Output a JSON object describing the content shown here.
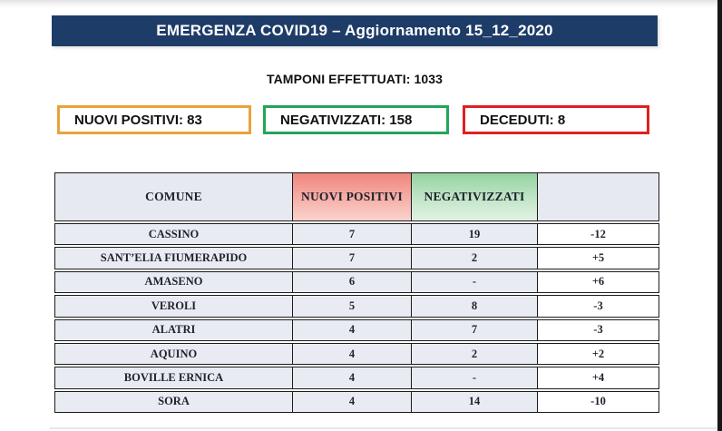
{
  "title_bar": {
    "text": "EMERGENZA COVID19 – Aggiornamento 15_12_2020",
    "bg_color": "#1e3c68",
    "text_color": "#ffffff"
  },
  "subtitle": "TAMPONI EFFETTUATI: 1033",
  "summary_boxes": [
    {
      "label": "NUOVI POSITIVI: 83",
      "border_color": "#e9a23b"
    },
    {
      "label": "NEGATIVIZZATI: 158",
      "border_color": "#23a55a"
    },
    {
      "label": "DECEDUTI: 8",
      "border_color": "#df2020"
    }
  ],
  "table": {
    "headers": [
      "COMUNE",
      "NUOVI POSITIVI",
      "NEGATIVIZZATI",
      ""
    ],
    "header_colors": {
      "comune_bg": "#e7e9f0",
      "nuovi_positivi_bg": "#f0857c",
      "negativizzati_bg": "#94d29f"
    },
    "row_bg": "#e9ebf2",
    "rows": [
      {
        "comune": "CASSINO",
        "nuovi_positivi": "7",
        "negativizzati": "19",
        "delta": "-12"
      },
      {
        "comune": "SANT’ELIA FIUMERAPIDO",
        "nuovi_positivi": "7",
        "negativizzati": "2",
        "delta": "+5"
      },
      {
        "comune": "AMASENO",
        "nuovi_positivi": "6",
        "negativizzati": "-",
        "delta": "+6"
      },
      {
        "comune": "VEROLI",
        "nuovi_positivi": "5",
        "negativizzati": "8",
        "delta": "-3"
      },
      {
        "comune": "ALATRI",
        "nuovi_positivi": "4",
        "negativizzati": "7",
        "delta": "-3"
      },
      {
        "comune": "AQUINO",
        "nuovi_positivi": "4",
        "negativizzati": "2",
        "delta": "+2"
      },
      {
        "comune": "BOVILLE ERNICA",
        "nuovi_positivis_note": "",
        "nuovi_positivi": "4",
        "negativizzati": "-",
        "delta": "+4"
      },
      {
        "comune": "SORA",
        "nuovi_positivi": "4",
        "negativizzati": "14",
        "delta": "-10"
      }
    ]
  }
}
